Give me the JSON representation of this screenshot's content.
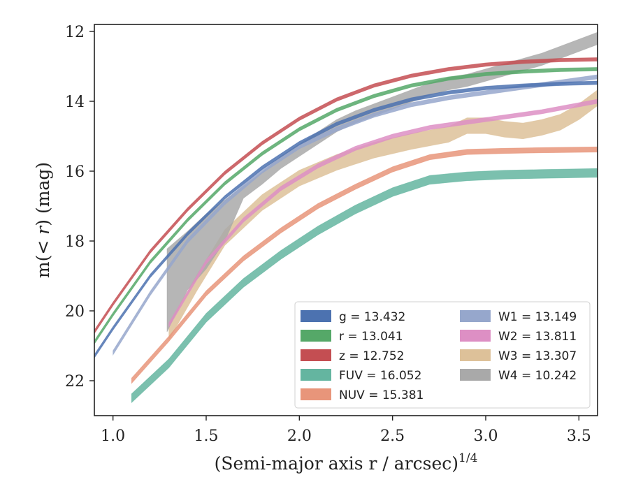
{
  "chart_data": {
    "type": "line",
    "xlabel": "(Semi-major axis r / arcsec)",
    "xlabel_exponent": "1/4",
    "ylabel_prefix": "m(",
    "ylabel_italic": "< r",
    "ylabel_suffix": ") (mag)",
    "xlim": [
      0.9,
      3.6
    ],
    "ylim": [
      23.0,
      11.8
    ],
    "y_inverted": true,
    "grid": false,
    "legend_position": "lower-right",
    "x_ticks": [
      {
        "value": 1.0,
        "label": "1.0"
      },
      {
        "value": 1.5,
        "label": "1.5"
      },
      {
        "value": 2.0,
        "label": "2.0"
      },
      {
        "value": 2.5,
        "label": "2.5"
      },
      {
        "value": 3.0,
        "label": "3.0"
      },
      {
        "value": 3.5,
        "label": "3.5"
      }
    ],
    "y_ticks": [
      {
        "value": 12,
        "label": "12"
      },
      {
        "value": 14,
        "label": "14"
      },
      {
        "value": 16,
        "label": "16"
      },
      {
        "value": 18,
        "label": "18"
      },
      {
        "value": 20,
        "label": "20"
      },
      {
        "value": 22,
        "label": "22"
      }
    ],
    "series": [
      {
        "name": "g",
        "legend_label": "g = 13.432",
        "color": "#4c72b0",
        "band_width": 0.1,
        "x": [
          0.9,
          1.0,
          1.2,
          1.4,
          1.6,
          1.8,
          2.0,
          2.2,
          2.4,
          2.6,
          2.8,
          3.0,
          3.2,
          3.4,
          3.6
        ],
        "y": [
          21.3,
          20.5,
          19.0,
          17.8,
          16.75,
          15.9,
          15.2,
          14.65,
          14.25,
          13.95,
          13.75,
          13.62,
          13.55,
          13.5,
          13.47
        ]
      },
      {
        "name": "r",
        "legend_label": "r = 13.041",
        "color": "#55a868",
        "band_width": 0.1,
        "x": [
          0.9,
          1.0,
          1.2,
          1.4,
          1.6,
          1.8,
          2.0,
          2.2,
          2.4,
          2.6,
          2.8,
          3.0,
          3.2,
          3.4,
          3.6
        ],
        "y": [
          20.9,
          20.1,
          18.6,
          17.4,
          16.35,
          15.5,
          14.8,
          14.25,
          13.85,
          13.55,
          13.35,
          13.22,
          13.15,
          13.1,
          13.08
        ]
      },
      {
        "name": "z",
        "legend_label": "z = 12.752",
        "color": "#c44e52",
        "band_width": 0.1,
        "x": [
          0.9,
          1.0,
          1.2,
          1.4,
          1.6,
          1.8,
          2.0,
          2.2,
          2.4,
          2.6,
          2.8,
          3.0,
          3.2,
          3.4,
          3.6
        ],
        "y": [
          20.6,
          19.8,
          18.3,
          17.1,
          16.05,
          15.2,
          14.5,
          13.95,
          13.55,
          13.27,
          13.08,
          12.95,
          12.87,
          12.82,
          12.8
        ]
      },
      {
        "name": "FUV",
        "legend_label": "FUV = 16.052",
        "color": "#64b5a0",
        "band_width": 0.25,
        "x": [
          1.1,
          1.3,
          1.5,
          1.7,
          1.9,
          2.1,
          2.3,
          2.5,
          2.7,
          2.9,
          3.1,
          3.3,
          3.6
        ],
        "y": [
          22.5,
          21.5,
          20.2,
          19.2,
          18.4,
          17.7,
          17.1,
          16.6,
          16.25,
          16.15,
          16.1,
          16.08,
          16.05
        ]
      },
      {
        "name": "NUV",
        "legend_label": "NUV = 15.381",
        "color": "#e8957a",
        "band_width": 0.15,
        "x": [
          1.1,
          1.3,
          1.5,
          1.7,
          1.9,
          2.1,
          2.3,
          2.5,
          2.7,
          2.9,
          3.1,
          3.3,
          3.6
        ],
        "y": [
          22.0,
          20.8,
          19.5,
          18.5,
          17.7,
          17.0,
          16.45,
          15.95,
          15.6,
          15.45,
          15.42,
          15.4,
          15.38
        ]
      },
      {
        "name": "W1",
        "legend_label": "W1 = 13.149",
        "color": "#96a7cc",
        "band_width": 0.12,
        "x": [
          1.0,
          1.2,
          1.4,
          1.6,
          1.8,
          2.0,
          2.2,
          2.4,
          2.6,
          2.8,
          3.0,
          3.2,
          3.4,
          3.6
        ],
        "y": [
          21.2,
          19.5,
          18.0,
          16.9,
          16.0,
          15.3,
          14.8,
          14.4,
          14.1,
          13.9,
          13.75,
          13.6,
          13.45,
          13.3
        ]
      },
      {
        "name": "W2",
        "legend_label": "W2 = 13.811",
        "color": "#dd8fc4",
        "band_width": 0.12,
        "x": [
          1.3,
          1.5,
          1.7,
          1.9,
          2.1,
          2.3,
          2.5,
          2.7,
          2.9,
          3.1,
          3.3,
          3.5,
          3.6
        ],
        "y": [
          20.4,
          18.6,
          17.4,
          16.5,
          15.85,
          15.35,
          15.0,
          14.75,
          14.6,
          14.45,
          14.3,
          14.1,
          14.0
        ]
      },
      {
        "name": "W3",
        "legend_label": "W3 = 13.307",
        "color": "#ddc199",
        "band_width": 0.45,
        "x": [
          1.3,
          1.45,
          1.6,
          1.8,
          2.0,
          2.2,
          2.4,
          2.6,
          2.8,
          2.9,
          3.0,
          3.1,
          3.2,
          3.3,
          3.4,
          3.5,
          3.6
        ],
        "y": [
          20.6,
          19.2,
          17.9,
          16.9,
          16.2,
          15.75,
          15.4,
          15.15,
          14.95,
          14.7,
          14.7,
          14.8,
          14.85,
          14.75,
          14.6,
          14.3,
          13.9
        ]
      },
      {
        "name": "W4",
        "legend_label": "W4 = 10.242",
        "color": "#a9a9a9",
        "band_width": 0.35,
        "x": [
          1.29,
          1.4,
          1.5,
          1.6,
          1.7,
          1.8,
          1.9,
          2.0,
          2.1,
          2.2,
          2.3,
          2.4,
          2.5,
          2.6,
          2.7,
          2.8,
          2.9,
          3.0,
          3.1,
          3.2,
          3.3,
          3.4,
          3.5,
          3.6
        ],
        "y": [
          18.4,
          17.9,
          17.4,
          17.0,
          16.6,
          16.2,
          15.75,
          15.4,
          15.05,
          14.7,
          14.45,
          14.25,
          14.05,
          13.85,
          13.65,
          13.5,
          13.4,
          13.25,
          13.1,
          12.95,
          12.8,
          12.6,
          12.4,
          12.2
        ]
      }
    ],
    "w4_wide_start": {
      "x": [
        1.29,
        1.4,
        1.5,
        1.6
      ],
      "y_low": [
        20.6,
        19.4,
        18.8,
        18.0
      ]
    }
  }
}
